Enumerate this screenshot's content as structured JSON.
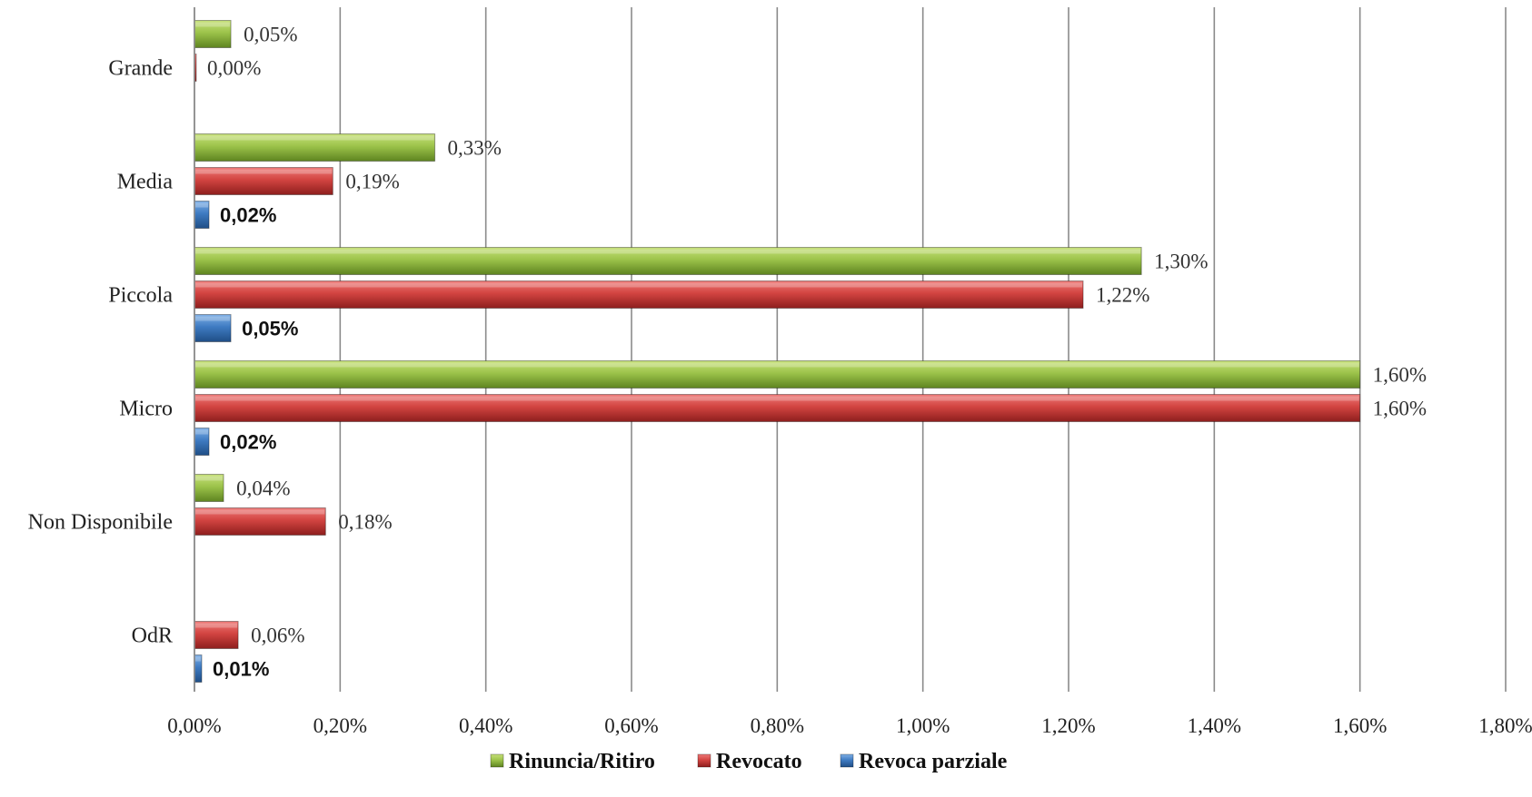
{
  "chart_data": {
    "type": "bar",
    "orientation": "horizontal",
    "categories": [
      "Grande",
      "Media",
      "Piccola",
      "Micro",
      "Non Disponibile",
      "OdR"
    ],
    "series": [
      {
        "name": "Rinuncia/Ritiro",
        "color": "#8DB43A",
        "values": [
          0.05,
          0.33,
          1.3,
          1.6,
          0.04,
          null
        ],
        "labels": [
          "0,05%",
          "0,33%",
          "1,30%",
          "1,60%",
          "0,04%",
          null
        ]
      },
      {
        "name": "Revocato",
        "color": "#C9393B",
        "values": [
          0.0,
          0.19,
          1.22,
          1.6,
          0.18,
          0.06
        ],
        "labels": [
          "0,00%",
          "0,19%",
          "1,22%",
          "1,60%",
          "0,18%",
          "0,06%"
        ]
      },
      {
        "name": "Revoca parziale",
        "color": "#3C74B5",
        "values": [
          null,
          0.02,
          0.05,
          0.02,
          null,
          0.01
        ],
        "labels": [
          null,
          "0,02%",
          "0,05%",
          "0,02%",
          null,
          "0,01%"
        ]
      }
    ],
    "xlim": [
      0,
      1.8
    ],
    "xticks": [
      0,
      0.2,
      0.4,
      0.6,
      0.8,
      1.0,
      1.2,
      1.4,
      1.6,
      1.8
    ],
    "xtick_labels": [
      "0,00%",
      "0,20%",
      "0,40%",
      "0,60%",
      "0,80%",
      "1,00%",
      "1,20%",
      "1,40%",
      "1,60%",
      "1,80%"
    ],
    "grid": "vertical",
    "legend_position": "bottom",
    "title": "",
    "xlabel": "",
    "ylabel": ""
  }
}
